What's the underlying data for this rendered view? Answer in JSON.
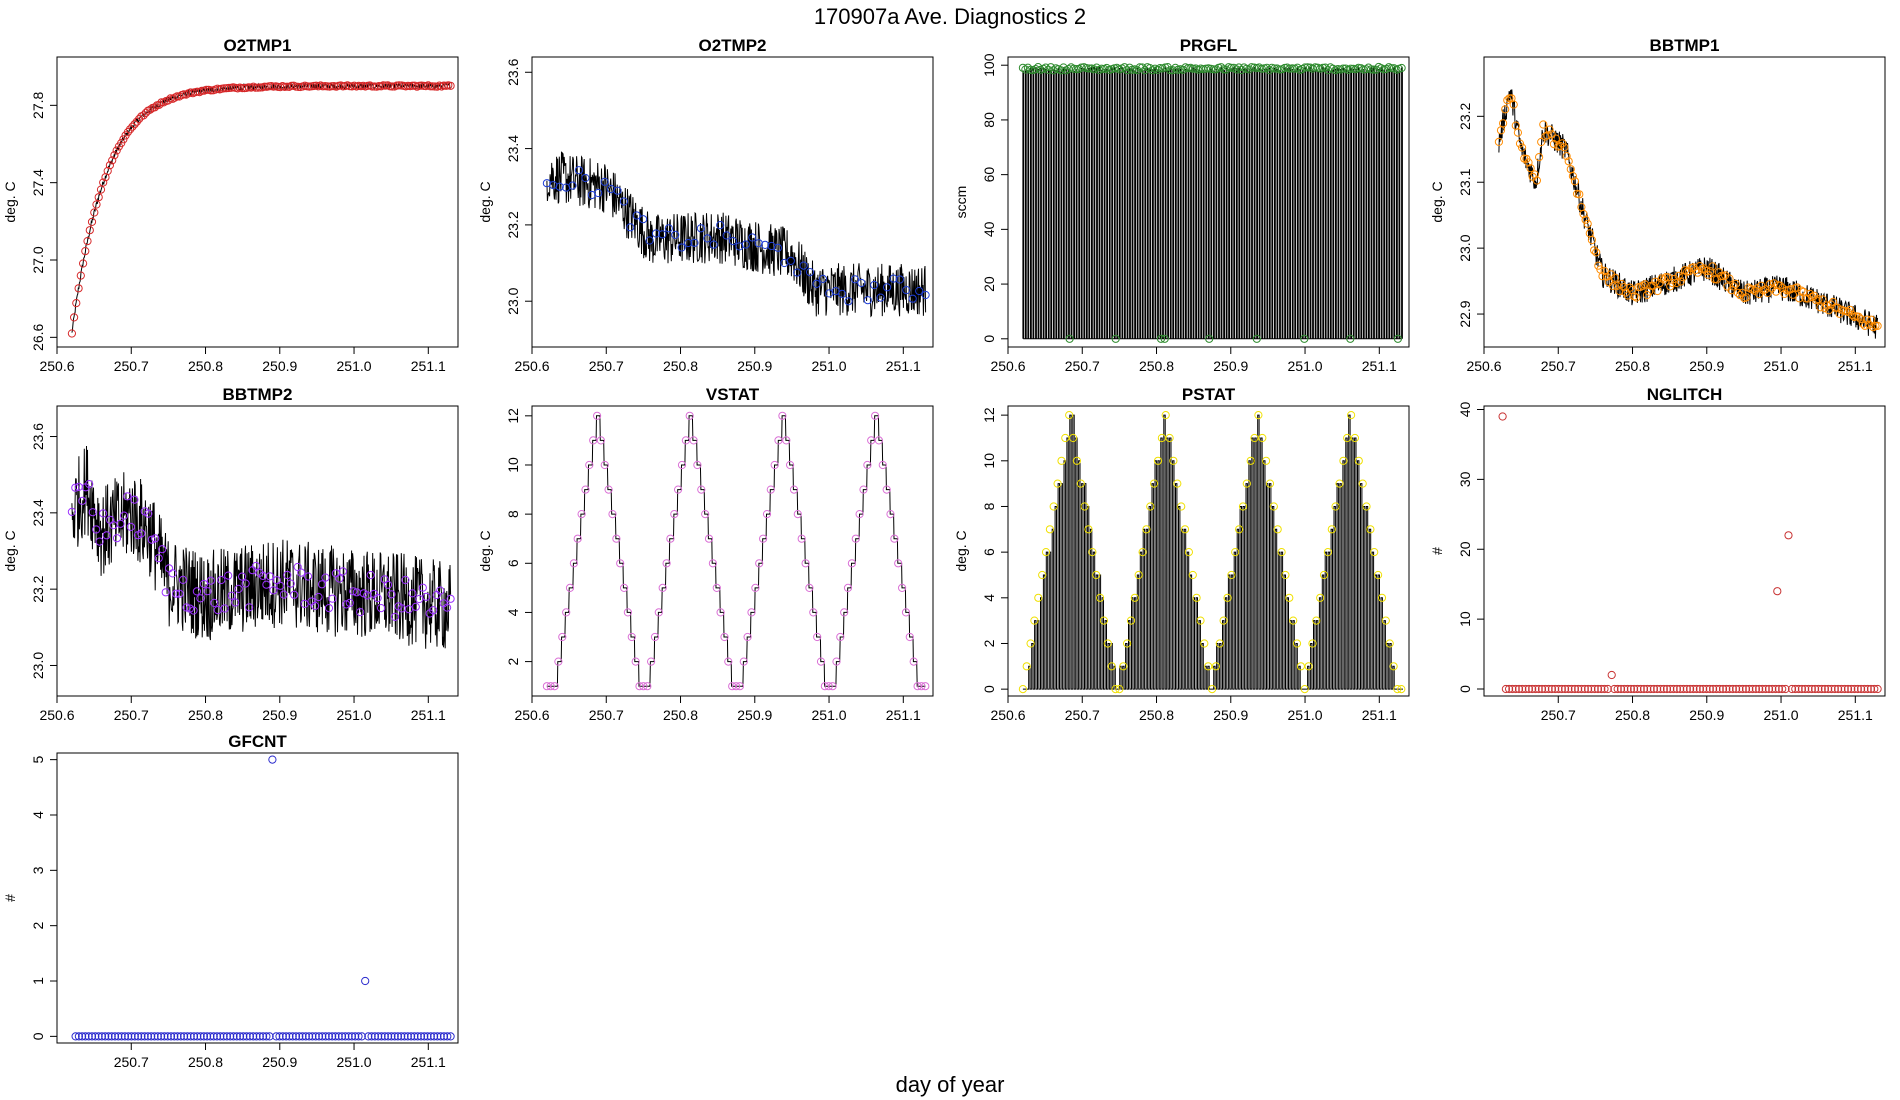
{
  "figure": {
    "title": "170907a   Ave. Diagnostics 2",
    "xlabel": "day of year"
  },
  "chart_data": [
    {
      "id": "o2tmp1",
      "type": "line",
      "title": "O2TMP1",
      "ylabel": "deg. C",
      "xlim": [
        250.6,
        251.14
      ],
      "ylim": [
        26.55,
        28.05
      ],
      "xticks": [
        "250.6",
        "250.7",
        "250.8",
        "250.9",
        "251.0",
        "251.1"
      ],
      "yticks": [
        "26.6",
        "27.0",
        "27.4",
        "27.8"
      ],
      "line_color": "#000000",
      "marker_color": "#d62728",
      "pattern": "exp",
      "x_start": 250.62,
      "x_end": 251.13,
      "y_start": 26.62,
      "y_end": 27.9,
      "tau": 0.045,
      "noise": 0.015,
      "marker_count": 170
    },
    {
      "id": "o2tmp2",
      "type": "line",
      "title": "O2TMP2",
      "ylabel": "deg. C",
      "xlim": [
        250.6,
        251.14
      ],
      "ylim": [
        22.88,
        23.64
      ],
      "xticks": [
        "250.6",
        "250.7",
        "250.8",
        "250.9",
        "251.0",
        "251.1"
      ],
      "yticks": [
        "23.0",
        "23.2",
        "23.4",
        "23.6"
      ],
      "line_color": "#000000",
      "marker_color": "#1f3fd6",
      "pattern": "anchors",
      "anchors": [
        [
          250.62,
          23.33
        ],
        [
          250.7,
          23.3
        ],
        [
          250.76,
          23.16
        ],
        [
          250.85,
          23.17
        ],
        [
          250.95,
          23.12
        ],
        [
          250.98,
          23.03
        ],
        [
          251.13,
          23.03
        ]
      ],
      "noise": 0.07,
      "marker_count": 60
    },
    {
      "id": "prgfl",
      "type": "line",
      "title": "PRGFL",
      "ylabel": "sccm",
      "xlim": [
        250.6,
        251.14
      ],
      "ylim": [
        -3,
        103
      ],
      "xticks": [
        "250.6",
        "250.7",
        "250.8",
        "250.9",
        "251.0",
        "251.1"
      ],
      "yticks": [
        "0",
        "20",
        "40",
        "60",
        "80",
        "100"
      ],
      "line_color": "#000000",
      "marker_color": "#2e8b2e",
      "pattern": "spikes",
      "x_start": 250.62,
      "x_end": 251.13,
      "high": 98.5,
      "low": 0,
      "count": 150,
      "zero_markers": [
        250.683,
        250.745,
        250.806,
        250.811,
        250.871,
        250.935,
        250.999,
        251.061,
        251.125
      ]
    },
    {
      "id": "bbtmp1",
      "type": "line",
      "title": "BBTMP1",
      "ylabel": "deg. C",
      "xlim": [
        250.6,
        251.14
      ],
      "ylim": [
        22.85,
        23.29
      ],
      "xticks": [
        "250.6",
        "250.7",
        "250.8",
        "250.9",
        "251.0",
        "251.1"
      ],
      "yticks": [
        "22.9",
        "23.0",
        "23.1",
        "23.2"
      ],
      "line_color": "#000000",
      "marker_color": "#ff8c00",
      "pattern": "anchors",
      "anchors": [
        [
          250.62,
          23.16
        ],
        [
          250.635,
          23.24
        ],
        [
          250.65,
          23.15
        ],
        [
          250.67,
          23.1
        ],
        [
          250.68,
          23.18
        ],
        [
          250.71,
          23.15
        ],
        [
          250.735,
          23.05
        ],
        [
          250.76,
          22.96
        ],
        [
          250.8,
          22.93
        ],
        [
          250.85,
          22.95
        ],
        [
          250.9,
          22.97
        ],
        [
          250.95,
          22.93
        ],
        [
          251.0,
          22.94
        ],
        [
          251.05,
          22.92
        ],
        [
          251.13,
          22.88
        ]
      ],
      "noise": 0.02,
      "marker_count": 180
    },
    {
      "id": "bbtmp2",
      "type": "line",
      "title": "BBTMP2",
      "ylabel": "deg. C",
      "xlim": [
        250.6,
        251.14
      ],
      "ylim": [
        22.92,
        23.68
      ],
      "xticks": [
        "250.6",
        "250.7",
        "250.8",
        "250.9",
        "251.0",
        "251.1"
      ],
      "yticks": [
        "23.0",
        "23.2",
        "23.4",
        "23.6"
      ],
      "line_color": "#000000",
      "marker_color": "#9b30ff",
      "pattern": "anchors",
      "anchors": [
        [
          250.62,
          23.4
        ],
        [
          250.64,
          23.47
        ],
        [
          250.66,
          23.35
        ],
        [
          250.7,
          23.4
        ],
        [
          250.725,
          23.35
        ],
        [
          250.75,
          23.22
        ],
        [
          250.8,
          23.18
        ],
        [
          250.85,
          23.2
        ],
        [
          250.9,
          23.22
        ],
        [
          250.95,
          23.2
        ],
        [
          251.0,
          23.19
        ],
        [
          251.05,
          23.18
        ],
        [
          251.13,
          23.15
        ]
      ],
      "noise": 0.12,
      "marker_count": 110
    },
    {
      "id": "vstat",
      "type": "line",
      "title": "VSTAT",
      "ylabel": "deg. C",
      "xlim": [
        250.6,
        251.14
      ],
      "ylim": [
        0.6,
        12.4
      ],
      "xticks": [
        "250.6",
        "250.7",
        "250.8",
        "250.9",
        "251.0",
        "251.1"
      ],
      "yticks": [
        "2",
        "4",
        "6",
        "8",
        "10",
        "12"
      ],
      "line_color": "#000000",
      "marker_color": "#da70d6",
      "pattern": "triangle",
      "x_start": 250.62,
      "x_end": 251.13,
      "low": 1,
      "high": 12,
      "step": 0.0052,
      "peaks": [
        250.689,
        250.814,
        250.939,
        251.064
      ]
    },
    {
      "id": "pstat",
      "type": "line",
      "title": "PSTAT",
      "ylabel": "deg. C",
      "xlim": [
        250.6,
        251.14
      ],
      "ylim": [
        -0.3,
        12.4
      ],
      "xticks": [
        "250.6",
        "250.7",
        "250.8",
        "250.9",
        "251.0",
        "251.1"
      ],
      "yticks": [
        "0",
        "2",
        "4",
        "6",
        "8",
        "10",
        "12"
      ],
      "line_color": "#000000",
      "marker_color": "#f0e000",
      "pattern": "pstat",
      "x_start": 250.62,
      "x_end": 251.13,
      "low": 0,
      "high": 12,
      "step": 0.0052,
      "peaks": [
        250.685,
        250.81,
        250.935,
        251.06
      ]
    },
    {
      "id": "nglitch",
      "type": "scatter",
      "title": "NGLITCH",
      "ylabel": "#",
      "xlim": [
        250.6,
        251.14
      ],
      "ylim": [
        -1,
        40.5
      ],
      "xticks": [
        "250.7",
        "250.8",
        "250.9",
        "251.0",
        "251.1"
      ],
      "yticks": [
        "0",
        "10",
        "20",
        "30",
        "40"
      ],
      "marker_color": "#c83232",
      "pattern": "scatter",
      "x_start": 250.625,
      "x_end": 251.13,
      "baseline": 0,
      "count": 115,
      "outliers": [
        [
          250.625,
          39
        ],
        [
          250.772,
          2
        ],
        [
          250.995,
          14
        ],
        [
          251.01,
          22
        ]
      ]
    },
    {
      "id": "gfcnt",
      "type": "scatter",
      "title": "GFCNT",
      "ylabel": "#",
      "xlim": [
        250.6,
        251.14
      ],
      "ylim": [
        -0.12,
        5.12
      ],
      "xticks": [
        "250.7",
        "250.8",
        "250.9",
        "251.0",
        "251.1"
      ],
      "yticks": [
        "0",
        "1",
        "2",
        "3",
        "4",
        "5"
      ],
      "marker_color": "#2a2acd",
      "pattern": "scatter",
      "x_start": 250.625,
      "x_end": 251.13,
      "baseline": 0,
      "count": 115,
      "outliers": [
        [
          250.89,
          5
        ],
        [
          251.015,
          1
        ]
      ]
    }
  ]
}
